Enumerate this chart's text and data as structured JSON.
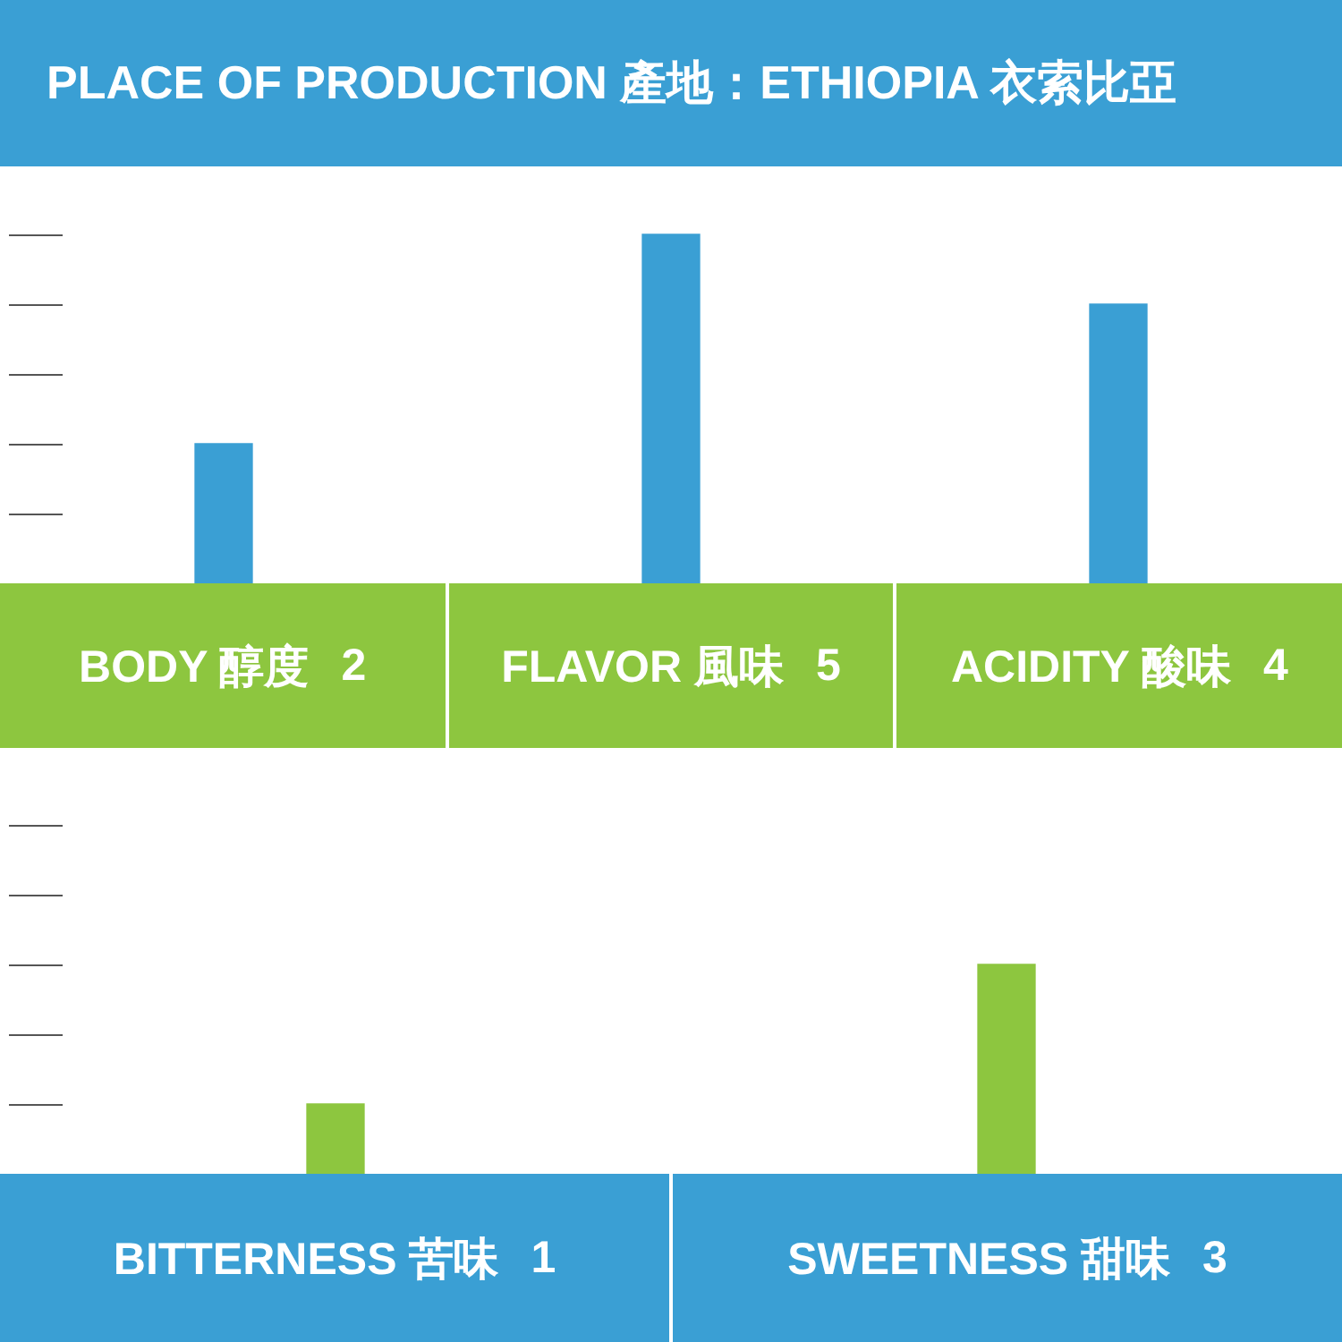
{
  "chart_data": [
    {
      "type": "bar",
      "title": "PLACE OF PRODUCTION 產地：ETHIOPIA 衣索比亞",
      "categories": [
        "BODY 醇度",
        "FLAVOR 風味",
        "ACIDITY 酸味"
      ],
      "values": [
        2,
        5,
        4
      ],
      "color": "#3a9fd4",
      "data_labels": true,
      "tick_labels": "x"
    },
    {
      "type": "bar",
      "categories": [
        "BITTERNESS 苦味",
        "SWEETNESS 甜味"
      ],
      "values": [
        1,
        3
      ],
      "color": "#8dc63f",
      "data_labels": true,
      "tick_labels": "x"
    }
  ]
}
